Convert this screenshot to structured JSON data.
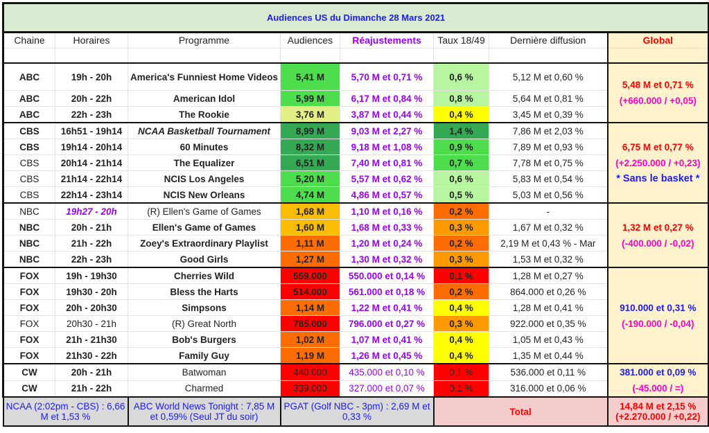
{
  "title": "Audiences US du Dimanche 28 Mars 2021",
  "headers": [
    "Chaine",
    "Horaires",
    "Programme",
    "Audiences",
    "Réajustements",
    "Taux 18/49",
    "Dernière diffusion",
    "Global"
  ],
  "colors": {
    "dg": "#34a853",
    "bg": "#4ddd4d",
    "lg": "#b7f5a0",
    "yg": "#e3ef86",
    "y": "#ffff00",
    "gold": "#fbbc04",
    "o1": "#ff6d01",
    "o2": "#ff9900",
    "r": "#ff0000"
  },
  "groups": [
    {
      "global": [
        "5,48 M et 0,71 %",
        "(+660.000 / +0,05)"
      ],
      "global_color": "red",
      "rows": [
        {
          "ch": "ABC",
          "chb": true,
          "h": "19h - 20h",
          "p": "America's Funniest Home Videos",
          "pb": true,
          "a": "5,41 M",
          "ac": "bg",
          "r": "5,70 M et 0,71 %",
          "t": "0,6 %",
          "tc": "lg",
          "d": "5,12 M et 0,60 %",
          "tall": true
        },
        {
          "ch": "ABC",
          "chb": true,
          "h": "20h - 22h",
          "p": "American Idol",
          "pb": true,
          "a": "5,99 M",
          "ac": "bg",
          "r": "6,17 M et 0,84 %",
          "t": "0,8 %",
          "tc": "lg",
          "d": "5,64 M et 0,81 %"
        },
        {
          "ch": "ABC",
          "chb": true,
          "h": "22h - 23h",
          "p": "The Rookie",
          "pb": true,
          "a": "3,76 M",
          "ac": "yg",
          "r": "3,87 M et 0,44 %",
          "t": "0,4 %",
          "tc": "y",
          "d": "3,45 M et 0,39 %"
        }
      ]
    },
    {
      "global": [
        "6,75 M et 0,77 %",
        "(+2.250.000 / +0,23)",
        "* Sans le basket *"
      ],
      "global_color": "red",
      "rows": [
        {
          "ch": "CBS",
          "chb": true,
          "h": "16h51 - 19h14",
          "p": "NCAA Basketball Tournament",
          "pb": true,
          "pi": true,
          "a": "8,99 M",
          "ac": "dg",
          "r": "9,03 M et 2,27 %",
          "t": "1,4 %",
          "tc": "dg",
          "d": "7,86 M et 2,03 %"
        },
        {
          "ch": "CBS",
          "chb": true,
          "h": "19h14 - 20h14",
          "p": "60 Minutes",
          "pb": true,
          "a": "8,32 M",
          "ac": "dg",
          "r": "9,18 M et 1,08 %",
          "t": "0,9 %",
          "tc": "bg",
          "d": "7,89 M et 0,93 %"
        },
        {
          "ch": "CBS",
          "h": "20h14 - 21h14",
          "p": "The Equalizer",
          "pb": true,
          "a": "6,51 M",
          "ac": "dg",
          "r": "7,40 M et 0,81 %",
          "t": "0,7 %",
          "tc": "bg",
          "d": "7,78 M et 0,75 %"
        },
        {
          "ch": "CBS",
          "h": "21h14 - 22h14",
          "p": "NCIS Los Angeles",
          "pb": true,
          "a": "5,20 M",
          "ac": "bg",
          "r": "5,57 M et 0,62 %",
          "t": "0,6 %",
          "tc": "lg",
          "d": "5,83 M et 0,54 %"
        },
        {
          "ch": "CBS",
          "h": "22h14 - 23h14",
          "p": "NCIS New Orleans",
          "pb": true,
          "a": "4,74 M",
          "ac": "bg",
          "r": "4,86 M et 0,57 %",
          "t": "0,5 %",
          "tc": "lg",
          "d": "5,03 M et 0,56 %"
        }
      ]
    },
    {
      "global": [
        "1,32 M et 0,27 %",
        "(-400.000 / -0,02)"
      ],
      "global_color": "red",
      "rows": [
        {
          "ch": "NBC",
          "h": "19h27 - 20h",
          "hpurple": true,
          "p": "(R) Ellen's Game of Games",
          "a": "1,68 M",
          "ac": "gold",
          "r": "1,10 M et 0,16 %",
          "t": "0,2 %",
          "tc": "o1",
          "d": "-"
        },
        {
          "ch": "NBC",
          "chb": true,
          "h": "20h - 21h",
          "p": "Ellen's Game of Games",
          "pb": true,
          "a": "1,60 M",
          "ac": "gold",
          "r": "1,68 M et 0,33 %",
          "t": "0,3 %",
          "tc": "o2",
          "d": "1,67 M et 0,32 %"
        },
        {
          "ch": "NBC",
          "chb": true,
          "h": "21h - 22h",
          "p": "Zoey's Extraordinary Playlist",
          "pb": true,
          "a": "1,11 M",
          "ac": "o1",
          "r": "1,20 M et 0,24 %",
          "t": "0,2 %",
          "tc": "o1",
          "d": "2,19 M et 0,43 % - Mar"
        },
        {
          "ch": "NBC",
          "chb": true,
          "h": "22h - 23h",
          "p": "Good Girls",
          "pb": true,
          "a": "1,27 M",
          "ac": "o1",
          "r": "1,30 M et 0,32 %",
          "t": "0,3 %",
          "tc": "o2",
          "d": "1,53 M et 0,32 %"
        }
      ]
    },
    {
      "global": [
        "910.000 et 0,31 %",
        "(-190.000 / -0,04)"
      ],
      "global_color": "blue",
      "rows": [
        {
          "ch": "FOX",
          "chb": true,
          "h": "19h - 19h30",
          "p": "Cherries Wild",
          "pb": true,
          "a": "559.000",
          "ac": "r",
          "r": "550.000 et 0,14 %",
          "t": "0,1 %",
          "tc": "r",
          "d": "1,28 M et 0,27 %"
        },
        {
          "ch": "FOX",
          "chb": true,
          "h": "19h30 - 20h",
          "p": "Bless the Harts",
          "pb": true,
          "a": "514.000",
          "ac": "r",
          "r": "561.000 et 0,18 %",
          "t": "0,2 %",
          "tc": "o1",
          "d": "864.000 et 0,26 %"
        },
        {
          "ch": "FOX",
          "chb": true,
          "h": "20h - 20h30",
          "p": "Simpsons",
          "pb": true,
          "a": "1,14 M",
          "ac": "o1",
          "r": "1,22 M et 0,41 %",
          "t": "0,4 %",
          "tc": "y",
          "d": "1,28 M et 0,41 %"
        },
        {
          "ch": "FOX",
          "h": "20h30 - 21h",
          "hnorm": true,
          "p": "(R) Great North",
          "a": "785.000",
          "ac": "r",
          "r": "796.000 et 0,27 %",
          "t": "0,3 %",
          "tc": "o2",
          "d": "922.000 et 0,35 %"
        },
        {
          "ch": "FOX",
          "chb": true,
          "h": "21h - 21h30",
          "p": "Bob's Burgers",
          "pb": true,
          "a": "1,02 M",
          "ac": "o1",
          "r": "1,07 M et 0,41 %",
          "t": "0,4 %",
          "tc": "y",
          "d": "1,05 M et 0,43 %"
        },
        {
          "ch": "FOX",
          "chb": true,
          "h": "21h30 - 22h",
          "p": "Family Guy",
          "pb": true,
          "a": "1,19 M",
          "ac": "o1",
          "r": "1,26 M et 0,45 %",
          "t": "0,4 %",
          "tc": "y",
          "d": "1,35 M et 0,44 %"
        }
      ]
    },
    {
      "global": [
        "381.000 et 0,09 %",
        "(-45.000 / =)"
      ],
      "global_color": "blue",
      "rows": [
        {
          "ch": "CW",
          "chb": true,
          "h": "20h - 21h",
          "p": "Batwoman",
          "a": "440.000",
          "ac": "r",
          "r": "435.000 et 0,10 %",
          "t": "0,1 %",
          "tc": "r",
          "d": "536.000 et 0,11 %",
          "plain": true
        },
        {
          "ch": "CW",
          "chb": true,
          "h": "21h - 22h",
          "p": "Charmed",
          "a": "339.000",
          "ac": "r",
          "r": "327.000 et 0,07 %",
          "t": "0,1 %",
          "tc": "r",
          "d": "316.000 et 0,06 %",
          "plain": true
        }
      ]
    }
  ],
  "footer": {
    "ncaa": "NCAA (2:02pm - CBS) : 6,66 M et 1,53 %",
    "abc_news": "ABC World News Tonight : 7,85 M et 0,59% (Seul JT du soir)",
    "pgat": "PGAT (Golf NBC - 3pm) : 2,69 M et 0,33 %",
    "total_label": "Total",
    "total_value": "14,84 M et 2,15 %",
    "total_delta": "(+2.270.000 / +0,22)"
  }
}
